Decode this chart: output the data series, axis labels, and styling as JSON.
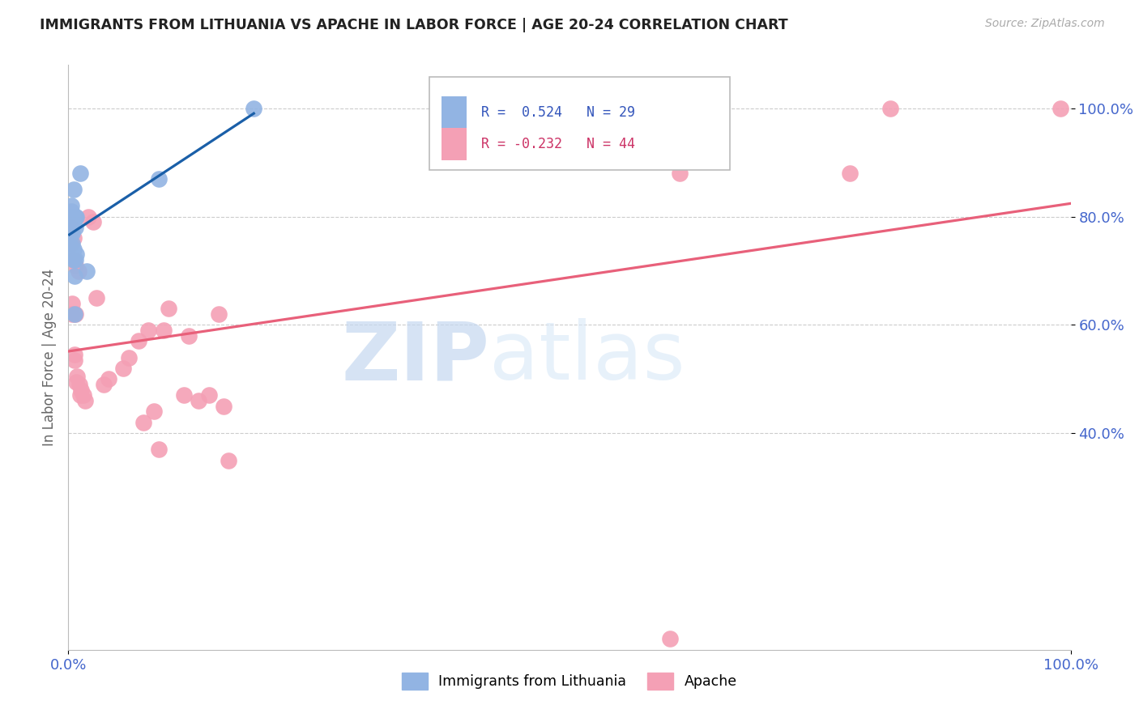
{
  "title": "IMMIGRANTS FROM LITHUANIA VS APACHE IN LABOR FORCE | AGE 20-24 CORRELATION CHART",
  "source": "Source: ZipAtlas.com",
  "ylabel": "In Labor Force | Age 20-24",
  "legend_labels": [
    "Immigrants from Lithuania",
    "Apache"
  ],
  "r_lithuania": 0.524,
  "n_lithuania": 29,
  "r_apache": -0.232,
  "n_apache": 44,
  "lithuania_color": "#92b4e3",
  "apache_color": "#f4a0b5",
  "trendline_lithuania_color": "#1a5fa8",
  "trendline_apache_color": "#e8607a",
  "watermark_zip": "ZIP",
  "watermark_atlas": "atlas",
  "xlim": [
    0.0,
    1.0
  ],
  "ylim": [
    0.0,
    1.08
  ],
  "yticks": [
    0.4,
    0.6,
    0.8,
    1.0
  ],
  "ytick_labels": [
    "40.0%",
    "60.0%",
    "80.0%",
    "100.0%"
  ],
  "xtick_labels": [
    "0.0%",
    "100.0%"
  ],
  "lithuania_x": [
    0.001,
    0.002,
    0.002,
    0.002,
    0.002,
    0.003,
    0.003,
    0.003,
    0.003,
    0.003,
    0.003,
    0.003,
    0.004,
    0.004,
    0.005,
    0.005,
    0.005,
    0.005,
    0.006,
    0.006,
    0.007,
    0.007,
    0.007,
    0.008,
    0.008,
    0.012,
    0.018,
    0.09,
    0.185
  ],
  "lithuania_y": [
    0.75,
    0.77,
    0.78,
    0.78,
    0.79,
    0.79,
    0.79,
    0.8,
    0.8,
    0.8,
    0.81,
    0.82,
    0.75,
    0.77,
    0.72,
    0.74,
    0.8,
    0.85,
    0.62,
    0.69,
    0.72,
    0.78,
    0.8,
    0.73,
    0.8,
    0.88,
    0.7,
    0.87,
    1.0
  ],
  "apache_x": [
    0.003,
    0.003,
    0.004,
    0.004,
    0.005,
    0.005,
    0.006,
    0.006,
    0.007,
    0.007,
    0.008,
    0.009,
    0.01,
    0.011,
    0.012,
    0.013,
    0.015,
    0.017,
    0.02,
    0.025,
    0.028,
    0.035,
    0.04,
    0.055,
    0.06,
    0.07,
    0.075,
    0.08,
    0.085,
    0.09,
    0.095,
    0.1,
    0.115,
    0.12,
    0.13,
    0.14,
    0.15,
    0.155,
    0.16,
    0.6,
    0.61,
    0.78,
    0.82,
    0.99
  ],
  "apache_y": [
    0.78,
    0.75,
    0.64,
    0.62,
    0.72,
    0.76,
    0.535,
    0.545,
    0.71,
    0.62,
    0.495,
    0.505,
    0.7,
    0.49,
    0.47,
    0.48,
    0.47,
    0.46,
    0.8,
    0.79,
    0.65,
    0.49,
    0.5,
    0.52,
    0.54,
    0.57,
    0.42,
    0.59,
    0.44,
    0.37,
    0.59,
    0.63,
    0.47,
    0.58,
    0.46,
    0.47,
    0.62,
    0.45,
    0.35,
    0.02,
    0.88,
    0.88,
    1.0,
    1.0
  ]
}
